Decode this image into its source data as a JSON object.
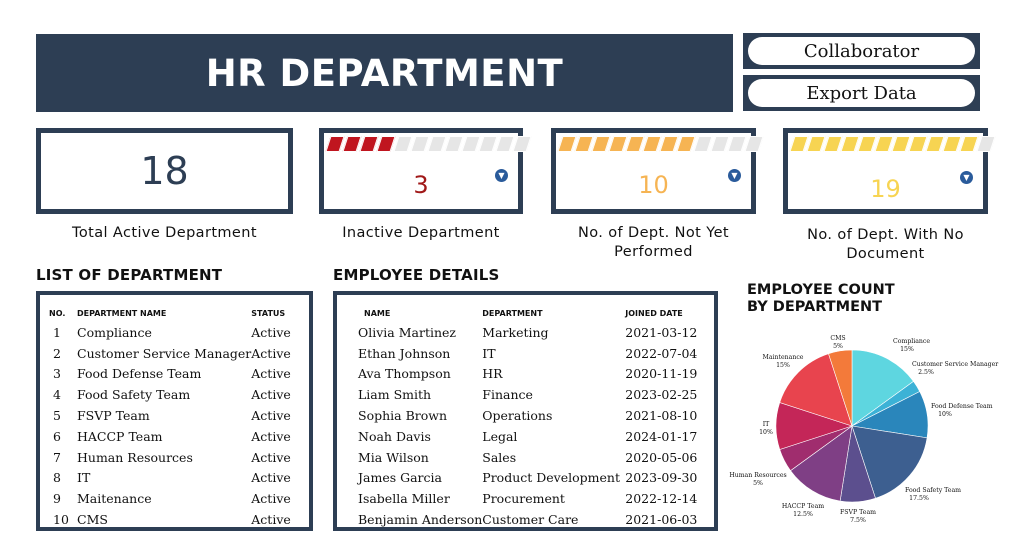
{
  "header": {
    "title": "HR DEPARTMENT"
  },
  "actions": {
    "collaborator": "Collaborator",
    "export": "Export Data"
  },
  "kpis": [
    {
      "value": "18",
      "label": "Total Active Department",
      "color": "#2d3e54"
    },
    {
      "value": "3",
      "label": "Inactive Department",
      "color": "#a01818",
      "meter_color": "#c0151f",
      "filled": 4,
      "total": 12
    },
    {
      "value": "10",
      "label": "No. of Dept. Not Yet Performed",
      "color": "#f6b453",
      "meter_color": "#f6b453",
      "filled": 8,
      "total": 12
    },
    {
      "value": "19",
      "label": "No. of Dept. With No Document",
      "color": "#f7d452",
      "meter_color": "#f7d452",
      "filled": 11,
      "total": 12
    }
  ],
  "departments": {
    "title": "LIST OF DEPARTMENT",
    "headers": [
      "NO.",
      "DEPARTMENT NAME",
      "STATUS"
    ],
    "rows": [
      [
        "1",
        "Compliance",
        "Active"
      ],
      [
        "2",
        "Customer Service Manager",
        "Active"
      ],
      [
        "3",
        "Food Defense Team",
        "Active"
      ],
      [
        "4",
        "Food Safety Team",
        "Active"
      ],
      [
        "5",
        "FSVP Team",
        "Active"
      ],
      [
        "6",
        "HACCP Team",
        "Active"
      ],
      [
        "7",
        "Human Resources",
        "Active"
      ],
      [
        "8",
        "IT",
        "Active"
      ],
      [
        "9",
        "Maitenance",
        "Active"
      ],
      [
        "10",
        "CMS",
        "Active"
      ]
    ]
  },
  "employees": {
    "title": "EMPLOYEE DETAILS",
    "headers": [
      "NAME",
      "DEPARTMENT",
      "JOINED DATE"
    ],
    "rows": [
      [
        "Olivia Martinez",
        "Marketing",
        "2021-03-12"
      ],
      [
        "Ethan Johnson",
        "IT",
        "2022-07-04"
      ],
      [
        "Ava Thompson",
        "HR",
        "2020-11-19"
      ],
      [
        "Liam Smith",
        "Finance",
        "2023-02-25"
      ],
      [
        "Sophia Brown",
        "Operations",
        "2021-08-10"
      ],
      [
        "Noah Davis",
        "Legal",
        "2024-01-17"
      ],
      [
        "Mia Wilson",
        "Sales",
        "2020-05-06"
      ],
      [
        "James Garcia",
        "Product Development",
        "2023-09-30"
      ],
      [
        "Isabella Miller",
        "Procurement",
        "2022-12-14"
      ],
      [
        "Benjamin Anderson",
        "Customer Care",
        "2021-06-03"
      ]
    ]
  },
  "chart_data": {
    "type": "pie",
    "title": "EMPLOYEE COUNT BY DEPARTMENT",
    "slices": [
      {
        "name": "Compliance",
        "label": "15%",
        "value": 15,
        "color": "#5ed6e0"
      },
      {
        "name": "Customer Service Manager",
        "label": "2.5%",
        "value": 2.5,
        "color": "#3cb2d6"
      },
      {
        "name": "Food Defense Team",
        "label": "10%",
        "value": 10,
        "color": "#2a86bb"
      },
      {
        "name": "Food Safety Team",
        "label": "17.5%",
        "value": 17.5,
        "color": "#3d5f90"
      },
      {
        "name": "FSVP Team",
        "label": "7.5%",
        "value": 7.5,
        "color": "#5c4f8e"
      },
      {
        "name": "HACCP Team",
        "label": "12.5%",
        "value": 12.5,
        "color": "#7f3f85"
      },
      {
        "name": "Human Resources",
        "label": "5%",
        "value": 5,
        "color": "#a02d6e"
      },
      {
        "name": "IT",
        "label": "10%",
        "value": 10,
        "color": "#c42658"
      },
      {
        "name": "Maintenance",
        "label": "15%",
        "value": 15,
        "color": "#e8444e"
      },
      {
        "name": "CMS",
        "label": "5%",
        "value": 5,
        "color": "#f37a3a"
      }
    ]
  }
}
